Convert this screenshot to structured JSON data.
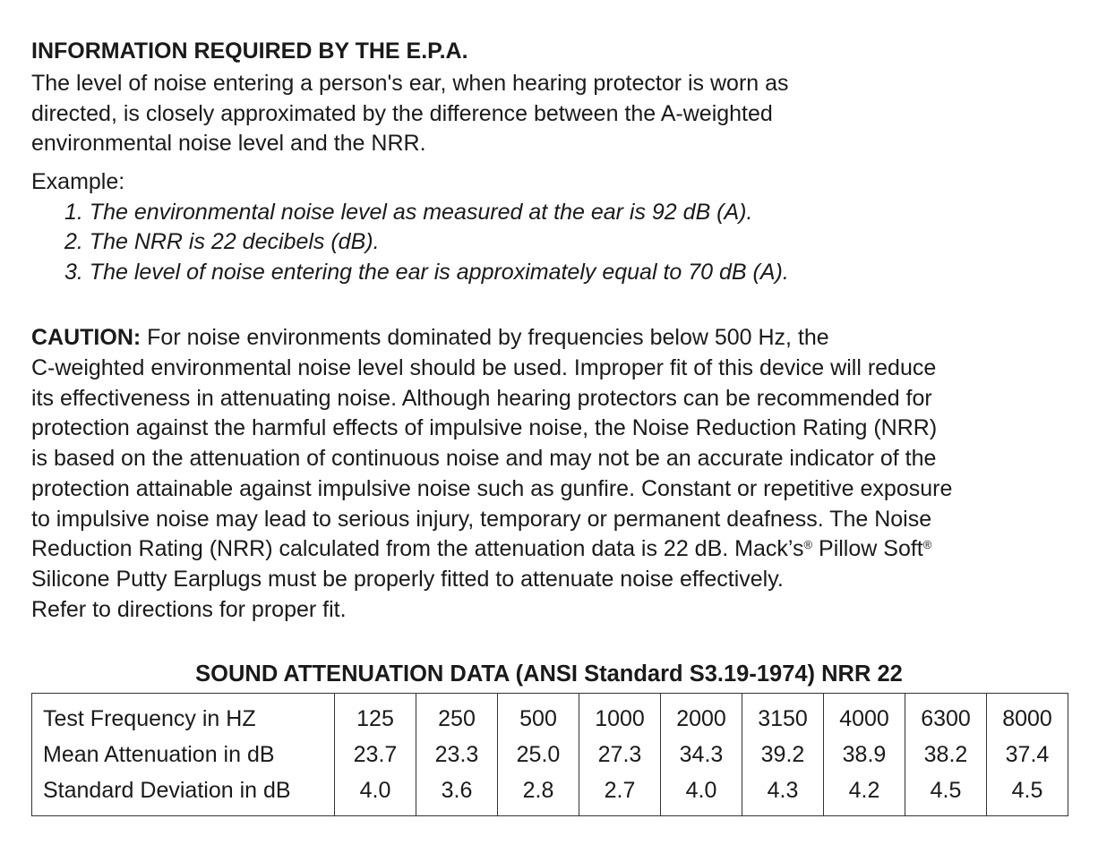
{
  "heading": "INFORMATION REQUIRED BY THE E.P.A.",
  "intro_lines": [
    "The level of noise entering a person's ear, when hearing protector is worn as",
    "directed, is closely approximated by the difference between the A-weighted",
    "environmental noise level and the NRR."
  ],
  "example_label": "Example:",
  "example_items": [
    "1. The environmental noise level as measured at the ear is 92 dB (A).",
    "2. The NRR is 22 decibels (dB).",
    "3. The level of noise entering the ear is approximately equal to 70 dB (A)."
  ],
  "caution": {
    "label": "CAUTION:",
    "first_line": " For noise environments dominated by frequencies below 500 Hz, the",
    "lines": [
      "C-weighted environmental noise level should be used. Improper fit of this device will reduce",
      "its effectiveness in attenuating noise. Although hearing protectors can be recommended for",
      "protection against the harmful effects of impulsive noise, the Noise Reduction Rating (NRR)",
      "is based on the attenuation of continuous noise and may not be an accurate indicator of the",
      "protection attainable against impulsive noise such as gunfire. Constant or repetitive exposure",
      "to impulsive noise may lead to serious injury, temporary or permanent deafness. The Noise"
    ],
    "line8_a": "Reduction Rating (NRR) calculated from the attenuation data is 22 dB. Mack’s",
    "reg": "®",
    "line8_b": " Pillow Soft",
    "line9": "Silicone Putty Earplugs must be properly fitted to attenuate noise effectively.",
    "line10": "Refer to directions for proper fit."
  },
  "table": {
    "title": "SOUND ATTENUATION DATA (ANSI Standard S3.19-1974) NRR 22",
    "rows": [
      {
        "label": "Test Frequency in HZ",
        "values": [
          "125",
          "250",
          "500",
          "1000",
          "2000",
          "3150",
          "4000",
          "6300",
          "8000"
        ]
      },
      {
        "label": "Mean Attenuation in dB",
        "values": [
          "23.7",
          "23.3",
          "25.0",
          "27.3",
          "34.3",
          "39.2",
          "38.9",
          "38.2",
          "37.4"
        ]
      },
      {
        "label": "Standard Deviation in dB",
        "values": [
          "4.0",
          "3.6",
          "2.8",
          "2.7",
          "4.0",
          "4.3",
          "4.2",
          "4.5",
          "4.5"
        ]
      }
    ]
  }
}
